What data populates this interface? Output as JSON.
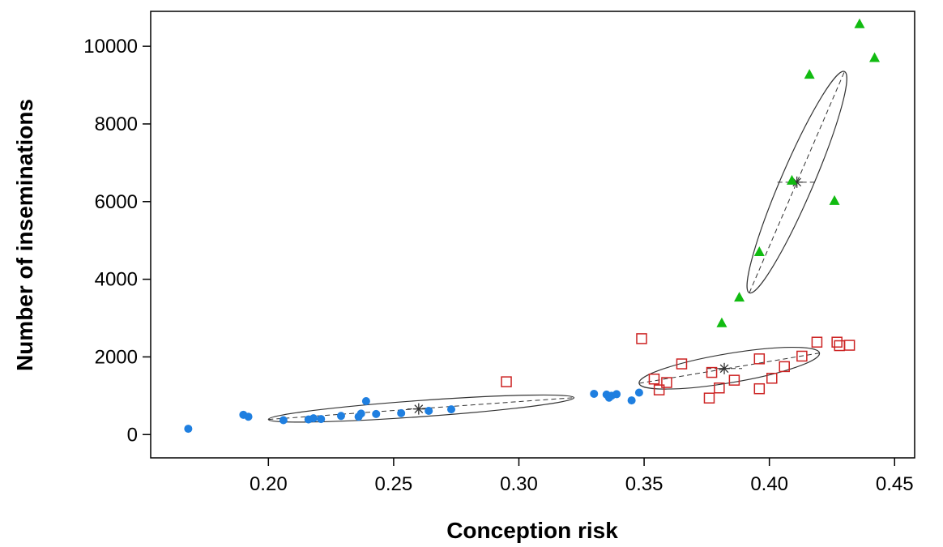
{
  "chart_data": {
    "type": "scatter",
    "title": "",
    "xlabel": "Conception risk",
    "ylabel": "Number of inseminations",
    "xlim": [
      0.153,
      0.458
    ],
    "ylim": [
      -600,
      10900
    ],
    "x_ticks": [
      0.2,
      0.25,
      0.3,
      0.35,
      0.4,
      0.45
    ],
    "x_tick_labels": [
      "0.20",
      "0.25",
      "0.30",
      "0.35",
      "0.40",
      "0.45"
    ],
    "y_ticks": [
      0,
      2000,
      4000,
      6000,
      8000,
      10000
    ],
    "y_tick_labels": [
      "0",
      "2000",
      "4000",
      "6000",
      "8000",
      "10000"
    ],
    "grid": false,
    "legend": "none",
    "series": [
      {
        "marker": "filled-circle",
        "color": "#1f7fe0",
        "points": [
          [
            0.168,
            150
          ],
          [
            0.19,
            510
          ],
          [
            0.192,
            460
          ],
          [
            0.206,
            370
          ],
          [
            0.216,
            390
          ],
          [
            0.218,
            420
          ],
          [
            0.221,
            400
          ],
          [
            0.229,
            480
          ],
          [
            0.236,
            460
          ],
          [
            0.237,
            540
          ],
          [
            0.239,
            860
          ],
          [
            0.243,
            530
          ],
          [
            0.253,
            550
          ],
          [
            0.264,
            610
          ],
          [
            0.273,
            650
          ],
          [
            0.33,
            1050
          ],
          [
            0.335,
            1030
          ],
          [
            0.336,
            950
          ],
          [
            0.337,
            1000
          ],
          [
            0.339,
            1040
          ],
          [
            0.345,
            880
          ],
          [
            0.348,
            1080
          ]
        ],
        "centroid": [
          0.26,
          660
        ],
        "ellipse_endpoints": [
          [
            0.2,
            390
          ],
          [
            0.322,
            950
          ]
        ],
        "ellipse_minor_half_width": 10
      },
      {
        "marker": "open-square",
        "color": "#cc2222",
        "points": [
          [
            0.295,
            1360
          ],
          [
            0.349,
            2470
          ],
          [
            0.354,
            1430
          ],
          [
            0.356,
            1150
          ],
          [
            0.359,
            1340
          ],
          [
            0.365,
            1820
          ],
          [
            0.376,
            940
          ],
          [
            0.377,
            1600
          ],
          [
            0.38,
            1200
          ],
          [
            0.386,
            1400
          ],
          [
            0.396,
            1950
          ],
          [
            0.396,
            1180
          ],
          [
            0.401,
            1450
          ],
          [
            0.406,
            1750
          ],
          [
            0.413,
            2020
          ],
          [
            0.419,
            2380
          ],
          [
            0.427,
            2380
          ],
          [
            0.428,
            2290
          ],
          [
            0.432,
            2300
          ]
        ],
        "centroid": [
          0.382,
          1700
        ],
        "ellipse_endpoints": [
          [
            0.348,
            1320
          ],
          [
            0.42,
            2100
          ]
        ],
        "ellipse_minor_half_width": 18
      },
      {
        "marker": "filled-triangle",
        "color": "#11bb11",
        "points": [
          [
            0.381,
            2870
          ],
          [
            0.388,
            3530
          ],
          [
            0.396,
            4700
          ],
          [
            0.409,
            6540
          ],
          [
            0.416,
            9270
          ],
          [
            0.426,
            6020
          ],
          [
            0.436,
            10570
          ],
          [
            0.442,
            9700
          ]
        ],
        "centroid": [
          0.411,
          6500
        ],
        "ellipse_endpoints": [
          [
            0.392,
            3650
          ],
          [
            0.43,
            9350
          ]
        ],
        "ellipse_minor_half_width": 20
      }
    ]
  }
}
